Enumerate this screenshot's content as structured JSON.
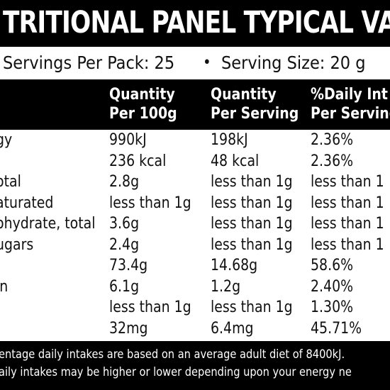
{
  "title": "TRITIONAL PANEL TYPICAL VALUE",
  "servings": {
    "per_pack": "Servings Per Pack: 25",
    "bullet": "•",
    "size": "Serving Size: 20 g"
  },
  "headers": {
    "col1_line1": "Quantity",
    "col1_line2": "Per 100g",
    "col2_line1": "Quantity",
    "col2_line2": "Per Serving",
    "col3_line1": "%Daily Int",
    "col3_line2": "Per Serving"
  },
  "rows": [
    {
      "label": "gy",
      "per100": "990kJ",
      "perServing": "198kJ",
      "daily": "2.36%"
    },
    {
      "label": "",
      "per100": "236 kcal",
      "perServing": "48 kcal",
      "daily": "2.36%"
    },
    {
      "label": "otal",
      "per100": "2.8g",
      "perServing": "less than 1g",
      "daily": "less than 1"
    },
    {
      "label": "aturated",
      "per100": "less than 1g",
      "perServing": "less than 1g",
      "daily": "less than 1"
    },
    {
      "label": "ohydrate, total",
      "per100": "3.6g",
      "perServing": "less than 1g",
      "daily": "less than 1"
    },
    {
      "label": "ugars",
      "per100": "2.4g",
      "perServing": "less than 1g",
      "daily": "less than 1"
    },
    {
      "label": "",
      "per100": "73.4g",
      "perServing": "14.68g",
      "daily": "58.6%"
    },
    {
      "label": "in",
      "per100": "6.1g",
      "perServing": "1.2g",
      "daily": "2.40%"
    },
    {
      "label": "",
      "per100": "less than 1g",
      "perServing": "less than 1g",
      "daily": "1.30%"
    },
    {
      "label": "",
      "per100": "32mg",
      "perServing": "6.4mg",
      "daily": "45.71%"
    }
  ],
  "footer": {
    "line1": "entage daily intakes are based on an average adult diet of 8400kJ.",
    "line2": "aily intakes may be higher or lower depending upon your energy ne"
  },
  "colors": {
    "band": "#000000",
    "band_text": "#ffffff",
    "text": "#111111"
  }
}
